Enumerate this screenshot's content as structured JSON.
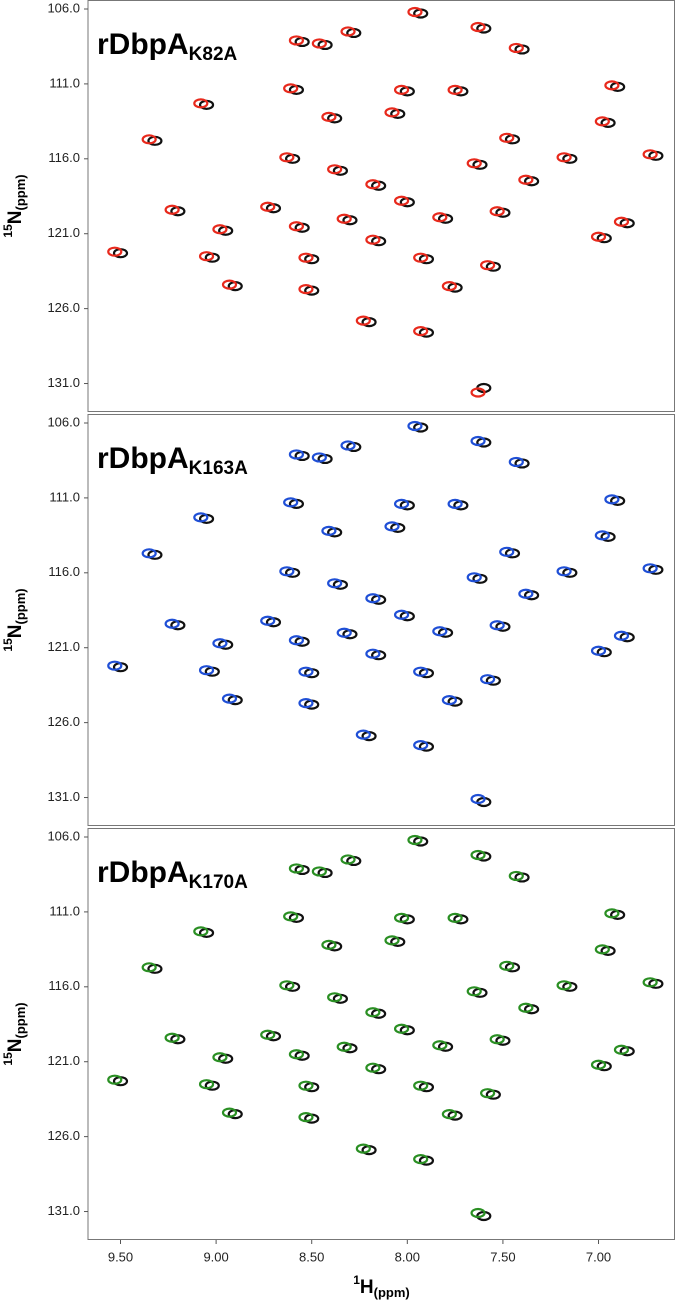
{
  "chart_data": [
    {
      "type": "scatter",
      "title": "rDbpA",
      "title_subscript": "K82A",
      "ylabel": {
        "superscript": "15",
        "text": "N",
        "subscript": "(ppm)"
      },
      "xlim": [
        9.67,
        6.6
      ],
      "ylim": [
        105.4,
        132.9
      ],
      "yticks": [
        {
          "value": 106,
          "label": "106.0"
        },
        {
          "value": 111,
          "label": "111.0"
        },
        {
          "value": 116,
          "label": "116.0"
        },
        {
          "value": 121,
          "label": "121.0"
        },
        {
          "value": 126,
          "label": "126.0"
        },
        {
          "value": 131,
          "label": "131.0"
        }
      ],
      "series": [
        {
          "color": "#111111",
          "x": [
            7.93,
            7.6,
            8.55,
            8.43,
            7.4,
            8.28,
            8.58,
            8.0,
            7.72,
            6.9,
            9.05,
            8.38,
            8.05,
            6.95,
            9.32,
            7.45,
            8.6,
            7.62,
            7.15,
            6.7,
            8.35,
            8.15,
            7.35,
            9.2,
            8.7,
            8.0,
            7.5,
            8.3,
            7.8,
            8.95,
            8.55,
            6.85,
            8.15,
            6.97,
            9.5,
            9.02,
            8.5,
            7.9,
            7.55,
            8.9,
            8.5,
            7.75,
            8.2,
            7.9,
            7.6
          ],
          "y": [
            106.3,
            107.3,
            108.2,
            108.4,
            108.7,
            107.6,
            111.4,
            111.5,
            111.5,
            111.2,
            112.4,
            113.3,
            113.0,
            113.6,
            114.8,
            114.7,
            116.0,
            116.4,
            116.0,
            115.8,
            116.8,
            117.8,
            117.5,
            119.5,
            119.3,
            118.9,
            119.6,
            120.1,
            120.0,
            120.8,
            120.6,
            120.3,
            121.5,
            121.3,
            122.3,
            122.6,
            122.7,
            122.7,
            123.2,
            124.5,
            124.8,
            124.6,
            126.9,
            127.6,
            131.3
          ]
        },
        {
          "color": "#e8291c",
          "x": [
            7.96,
            7.63,
            8.58,
            8.46,
            7.43,
            8.31,
            8.61,
            8.03,
            7.75,
            6.93,
            9.08,
            8.41,
            8.08,
            6.98,
            9.35,
            7.48,
            8.63,
            7.65,
            7.18,
            6.73,
            8.38,
            8.18,
            7.38,
            9.23,
            8.73,
            8.03,
            7.53,
            8.33,
            7.83,
            8.98,
            8.58,
            6.88,
            8.18,
            7.0,
            9.53,
            9.05,
            8.53,
            7.93,
            7.58,
            8.93,
            8.53,
            7.78,
            8.23,
            7.93,
            7.63
          ],
          "y": [
            106.2,
            107.2,
            108.1,
            108.3,
            108.6,
            107.5,
            111.3,
            111.4,
            111.4,
            111.1,
            112.3,
            113.2,
            112.9,
            113.5,
            114.7,
            114.6,
            115.9,
            116.3,
            115.9,
            115.7,
            116.7,
            117.7,
            117.4,
            119.4,
            119.2,
            118.8,
            119.5,
            120.0,
            119.9,
            120.7,
            120.5,
            120.2,
            121.4,
            121.2,
            122.2,
            122.5,
            122.6,
            122.6,
            123.1,
            124.4,
            124.7,
            124.5,
            126.8,
            127.5,
            131.6
          ]
        }
      ]
    },
    {
      "type": "scatter",
      "title": "rDbpA",
      "title_subscript": "K163A",
      "ylabel": {
        "superscript": "15",
        "text": "N",
        "subscript": "(ppm)"
      },
      "xlim": [
        9.67,
        6.6
      ],
      "ylim": [
        105.4,
        132.9
      ],
      "yticks": [
        {
          "value": 106,
          "label": "106.0"
        },
        {
          "value": 111,
          "label": "111.0"
        },
        {
          "value": 116,
          "label": "116.0"
        },
        {
          "value": 121,
          "label": "121.0"
        },
        {
          "value": 126,
          "label": "126.0"
        },
        {
          "value": 131,
          "label": "131.0"
        }
      ],
      "series": [
        {
          "color": "#111111",
          "x": [
            7.93,
            7.6,
            8.55,
            8.43,
            7.4,
            8.28,
            8.58,
            8.0,
            7.72,
            6.9,
            9.05,
            8.38,
            8.05,
            6.95,
            9.32,
            7.45,
            8.6,
            7.62,
            7.15,
            6.7,
            8.35,
            8.15,
            7.35,
            9.2,
            8.7,
            8.0,
            7.5,
            8.3,
            7.8,
            8.95,
            8.55,
            6.85,
            8.15,
            6.97,
            9.5,
            9.02,
            8.5,
            7.9,
            7.55,
            8.9,
            8.5,
            7.75,
            8.2,
            7.9,
            7.6
          ],
          "y": [
            106.3,
            107.3,
            108.2,
            108.4,
            108.7,
            107.6,
            111.4,
            111.5,
            111.5,
            111.2,
            112.4,
            113.3,
            113.0,
            113.6,
            114.8,
            114.7,
            116.0,
            116.4,
            116.0,
            115.8,
            116.8,
            117.8,
            117.5,
            119.5,
            119.3,
            118.9,
            119.6,
            120.1,
            120.0,
            120.8,
            120.6,
            120.3,
            121.5,
            121.3,
            122.3,
            122.6,
            122.7,
            122.7,
            123.2,
            124.5,
            124.8,
            124.6,
            126.9,
            127.6,
            131.3
          ]
        },
        {
          "color": "#1f4fd6",
          "x": [
            7.96,
            7.63,
            8.58,
            8.46,
            7.43,
            8.31,
            8.61,
            8.03,
            7.75,
            6.93,
            9.08,
            8.41,
            8.08,
            6.98,
            9.35,
            7.48,
            8.63,
            7.65,
            7.18,
            6.73,
            8.38,
            8.18,
            7.38,
            9.23,
            8.73,
            8.03,
            7.53,
            8.33,
            7.83,
            8.98,
            8.58,
            6.88,
            8.18,
            7.0,
            9.53,
            9.05,
            8.53,
            7.93,
            7.58,
            8.93,
            8.53,
            7.78,
            8.23,
            7.93,
            7.63
          ],
          "y": [
            106.2,
            107.2,
            108.1,
            108.3,
            108.6,
            107.5,
            111.3,
            111.4,
            111.4,
            111.1,
            112.3,
            113.2,
            112.9,
            113.5,
            114.7,
            114.6,
            115.9,
            116.3,
            115.9,
            115.7,
            116.7,
            117.7,
            117.4,
            119.4,
            119.2,
            118.8,
            119.5,
            120.0,
            119.9,
            120.7,
            120.5,
            120.2,
            121.4,
            121.2,
            122.2,
            122.5,
            122.6,
            122.6,
            123.1,
            124.4,
            124.7,
            124.5,
            126.8,
            127.5,
            131.1
          ]
        }
      ]
    },
    {
      "type": "scatter",
      "title": "rDbpA",
      "title_subscript": "K170A",
      "ylabel": {
        "superscript": "15",
        "text": "N",
        "subscript": "(ppm)"
      },
      "xlabel": {
        "superscript": "1",
        "text": "H",
        "subscript": "(ppm)"
      },
      "xlim": [
        9.67,
        6.6
      ],
      "ylim": [
        105.4,
        132.9
      ],
      "xticks": [
        {
          "value": 9.5,
          "label": "9.50"
        },
        {
          "value": 9,
          "label": "9.00"
        },
        {
          "value": 8.5,
          "label": "8.50"
        },
        {
          "value": 8,
          "label": "8.00"
        },
        {
          "value": 7.5,
          "label": "7.50"
        },
        {
          "value": 7,
          "label": "7.00"
        }
      ],
      "yticks": [
        {
          "value": 106,
          "label": "106.0"
        },
        {
          "value": 111,
          "label": "111.0"
        },
        {
          "value": 116,
          "label": "116.0"
        },
        {
          "value": 121,
          "label": "121.0"
        },
        {
          "value": 126,
          "label": "126.0"
        },
        {
          "value": 131,
          "label": "131.0"
        }
      ],
      "series": [
        {
          "color": "#111111",
          "x": [
            7.93,
            7.6,
            8.55,
            8.43,
            7.4,
            8.28,
            8.58,
            8.0,
            7.72,
            6.9,
            9.05,
            8.38,
            8.05,
            6.95,
            9.32,
            7.45,
            8.6,
            7.62,
            7.15,
            6.7,
            8.35,
            8.15,
            7.35,
            9.2,
            8.7,
            8.0,
            7.5,
            8.3,
            7.8,
            8.95,
            8.55,
            6.85,
            8.15,
            6.97,
            9.5,
            9.02,
            8.5,
            7.9,
            7.55,
            8.9,
            8.5,
            7.75,
            8.2,
            7.9,
            7.6
          ],
          "y": [
            106.3,
            107.3,
            108.2,
            108.4,
            108.7,
            107.6,
            111.4,
            111.5,
            111.5,
            111.2,
            112.4,
            113.3,
            113.0,
            113.6,
            114.8,
            114.7,
            116.0,
            116.4,
            116.0,
            115.8,
            116.8,
            117.8,
            117.5,
            119.5,
            119.3,
            118.9,
            119.6,
            120.1,
            120.0,
            120.8,
            120.6,
            120.3,
            121.5,
            121.3,
            122.3,
            122.6,
            122.7,
            122.7,
            123.2,
            124.5,
            124.8,
            124.6,
            126.9,
            127.6,
            131.3
          ]
        },
        {
          "color": "#2a8f23",
          "x": [
            7.96,
            7.63,
            8.58,
            8.46,
            7.43,
            8.31,
            8.61,
            8.03,
            7.75,
            6.93,
            9.08,
            8.41,
            8.08,
            6.98,
            9.35,
            7.48,
            8.63,
            7.65,
            7.18,
            6.73,
            8.38,
            8.18,
            7.38,
            9.23,
            8.73,
            8.03,
            7.53,
            8.33,
            7.83,
            8.98,
            8.58,
            6.88,
            8.18,
            7.0,
            9.53,
            9.05,
            8.53,
            7.93,
            7.58,
            8.93,
            8.53,
            7.78,
            8.23,
            7.93,
            7.63
          ],
          "y": [
            106.2,
            107.2,
            108.1,
            108.3,
            108.6,
            107.5,
            111.3,
            111.4,
            111.4,
            111.1,
            112.3,
            113.2,
            112.9,
            113.5,
            114.7,
            114.6,
            115.9,
            116.3,
            115.9,
            115.7,
            116.7,
            117.7,
            117.4,
            119.4,
            119.2,
            118.8,
            119.5,
            120.0,
            119.9,
            120.7,
            120.5,
            120.2,
            121.4,
            121.2,
            122.2,
            122.5,
            122.6,
            122.6,
            123.1,
            124.4,
            124.7,
            124.5,
            126.8,
            127.5,
            131.1
          ]
        }
      ]
    }
  ]
}
